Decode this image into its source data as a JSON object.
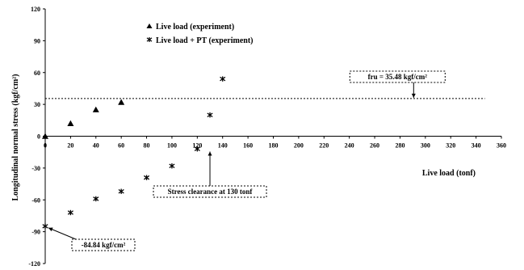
{
  "chart_data": {
    "type": "scatter",
    "title": "",
    "xlabel": "Live load (tonf)",
    "ylabel": "Longitudinal normal stress (kgf/cm²)",
    "xlim": [
      0,
      360
    ],
    "ylim": [
      -120,
      120
    ],
    "x_ticks": [
      "0",
      "20",
      "40",
      "60",
      "80",
      "100",
      "120",
      "140",
      "160",
      "180",
      "200",
      "220",
      "240",
      "260",
      "280",
      "300",
      "320",
      "340",
      "360"
    ],
    "y_ticks": [
      "120",
      "90",
      "60",
      "30",
      "0",
      "-30",
      "-60",
      "-90",
      "-120"
    ],
    "grid": false,
    "legend_position": "top-left",
    "series": [
      {
        "name": "Live load (experiment)",
        "marker": "triangle",
        "x": [
          0,
          20,
          40,
          60
        ],
        "y": [
          0,
          12,
          25,
          32
        ]
      },
      {
        "name": "Live load + PT (experiment)",
        "marker": "star",
        "x": [
          0,
          20,
          40,
          60,
          80,
          100,
          120,
          130,
          140
        ],
        "y": [
          -84.84,
          -72,
          -59,
          -52,
          -39,
          -28,
          -12,
          20,
          54
        ]
      }
    ],
    "reference_line": {
      "y": 35.48,
      "label": "fru = 35.48 kgf/cm²"
    },
    "annotations": [
      {
        "text": "fru = 35.48 kgf/cm²",
        "x": 278,
        "y": 35.48
      },
      {
        "text": "Stress clearance at 130 tonf",
        "x": 130,
        "y": 0
      },
      {
        "text": "-84.84 kgf/cm²",
        "x": 0,
        "y": -84.84
      }
    ]
  }
}
